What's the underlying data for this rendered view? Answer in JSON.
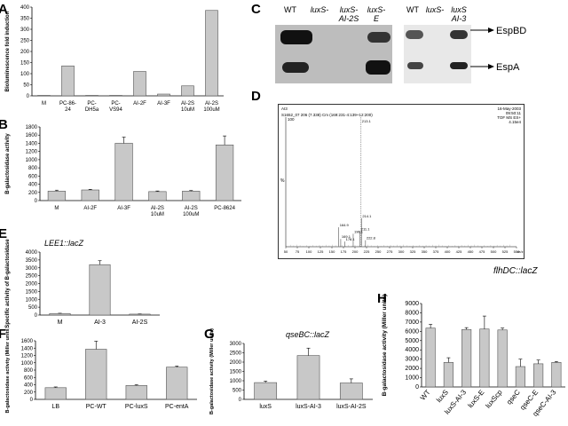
{
  "panels": {
    "A": {
      "label": "A"
    },
    "B": {
      "label": "B"
    },
    "C": {
      "label": "C"
    },
    "D": {
      "label": "D"
    },
    "E": {
      "label": "E"
    },
    "F": {
      "label": "F"
    },
    "G": {
      "label": "G"
    },
    "H": {
      "label": "H"
    }
  },
  "blot": {
    "lanes_left": [
      "WT",
      "luxS-",
      "luxS- AI-2S",
      "luxS- E"
    ],
    "lanes_right": [
      "WT",
      "luxS-",
      "luxS AI-3"
    ],
    "band_labels": [
      "EspBD",
      "EspA"
    ]
  },
  "spectrum": {
    "title_left": "AI3",
    "date": "16-May-2003",
    "time": "09:50:11",
    "header_line": "S1652_07 206 (7.338) Cm (169:231-4:139+12:200)",
    "instrument": "TOF MS ES+",
    "intensity": "4.15e4",
    "ylabel": "%",
    "y100": "100",
    "peak_labels": [
      "213.1",
      "214.1",
      "211.1",
      "164.9",
      "196.1",
      "169.1",
      "178.1",
      "222.8"
    ],
    "xaxis": "m/z",
    "xticks": [
      "50",
      "75",
      "100",
      "125",
      "150",
      "175",
      "200",
      "225",
      "250",
      "275",
      "300",
      "325",
      "350",
      "375",
      "400",
      "425",
      "450",
      "475",
      "500",
      "525",
      "550"
    ]
  },
  "flhdc_label": "flhDC::lacZ",
  "chart_data": [
    {
      "type": "bar",
      "panel": "A",
      "ylabel": "Bioluminescence fold induction",
      "categories": [
        "M",
        "PC-86-24",
        "PC-DH5a",
        "PC-VS94",
        "AI-2F",
        "AI-3F",
        "AI-2S 10uM",
        "AI-2S 100uM"
      ],
      "cat_lines": [
        [
          "M"
        ],
        [
          "PC-86-",
          "24"
        ],
        [
          "PC-",
          "DH5a"
        ],
        [
          "PC-",
          "VS94"
        ],
        [
          "AI-2F"
        ],
        [
          "AI-3F"
        ],
        [
          "AI-2S",
          "10uM"
        ],
        [
          "AI-2S",
          "100uM"
        ]
      ],
      "values": [
        2,
        135,
        2,
        2,
        110,
        8,
        45,
        385
      ],
      "errors": [
        0,
        0,
        0,
        0,
        0,
        0,
        0,
        0
      ],
      "ylim": [
        0,
        400
      ],
      "yticks": [
        0,
        50,
        100,
        150,
        200,
        250,
        300,
        350,
        400
      ]
    },
    {
      "type": "bar",
      "panel": "B",
      "ylabel": "B-galactosidase activity",
      "categories": [
        "M",
        "AI-2F",
        "AI-3F",
        "AI-2S 10uM",
        "AI-2S 100uM",
        "PC-8624"
      ],
      "cat_lines": [
        [
          "M"
        ],
        [
          "AI-2F"
        ],
        [
          "AI-3F"
        ],
        [
          "AI-2S",
          "10uM"
        ],
        [
          "AI-2S",
          "100uM"
        ],
        [
          "PC-8624"
        ]
      ],
      "values": [
        230,
        260,
        1400,
        220,
        230,
        1360
      ],
      "errors": [
        25,
        15,
        150,
        15,
        15,
        220
      ],
      "ylim": [
        0,
        1800
      ],
      "yticks": [
        0,
        200,
        400,
        600,
        800,
        1000,
        1200,
        1400,
        1600,
        1800
      ]
    },
    {
      "type": "bar",
      "panel": "E",
      "title": "LEE1::lacZ",
      "ylabel": "Specific activity of B-galactosidase",
      "categories": [
        "M",
        "AI-3",
        "AI-2S"
      ],
      "cat_lines": [
        [
          "M"
        ],
        [
          "AI-3"
        ],
        [
          "AI-2S"
        ]
      ],
      "values": [
        100,
        3200,
        60
      ],
      "errors": [
        15,
        250,
        10
      ],
      "ylim": [
        0,
        4000
      ],
      "yticks": [
        0,
        500,
        1000,
        1500,
        2000,
        2500,
        3000,
        3500,
        4000
      ]
    },
    {
      "type": "bar",
      "panel": "F",
      "ylabel": "B-galactosidase activity (Miller units)",
      "categories": [
        "LB",
        "PC-WT",
        "PC-luxS",
        "PC-entA"
      ],
      "cat_lines": [
        [
          "LB"
        ],
        [
          "PC-WT"
        ],
        [
          "PC-luxS"
        ],
        [
          "PC-entA"
        ]
      ],
      "values": [
        320,
        1370,
        380,
        880
      ],
      "errors": [
        20,
        220,
        20,
        30
      ],
      "ylim": [
        0,
        1600
      ],
      "yticks": [
        0,
        200,
        400,
        600,
        800,
        1000,
        1200,
        1400,
        1600
      ]
    },
    {
      "type": "bar",
      "panel": "G",
      "title": "qseBC::lacZ",
      "ylabel": "B-galactosidase activity (Miller units)",
      "categories": [
        "luxS",
        "luxS-AI-3",
        "luxS-AI-2S"
      ],
      "cat_lines": [
        [
          "luxS"
        ],
        [
          "luxS-AI-3"
        ],
        [
          "luxS-AI-2S"
        ]
      ],
      "values": [
        900,
        2350,
        880
      ],
      "errors": [
        80,
        400,
        220
      ],
      "ylim": [
        0,
        3000
      ],
      "yticks": [
        0,
        500,
        1000,
        1500,
        2000,
        2500,
        3000
      ]
    },
    {
      "type": "bar",
      "panel": "H",
      "ylabel": "B-galactosidase activity (Miller units)",
      "categories": [
        "WT",
        "luxS",
        "luxS-AI-3",
        "luxS-E",
        "luxScp",
        "qseC",
        "qseC-E",
        "qseC-AI-3"
      ],
      "values": [
        6350,
        2650,
        6200,
        6250,
        6150,
        2200,
        2500,
        2650
      ],
      "errors": [
        400,
        500,
        200,
        1400,
        200,
        800,
        400,
        100
      ],
      "ylim": [
        0,
        9000
      ],
      "yticks": [
        0,
        1000,
        2000,
        3000,
        4000,
        5000,
        6000,
        7000,
        8000,
        9000
      ]
    }
  ]
}
